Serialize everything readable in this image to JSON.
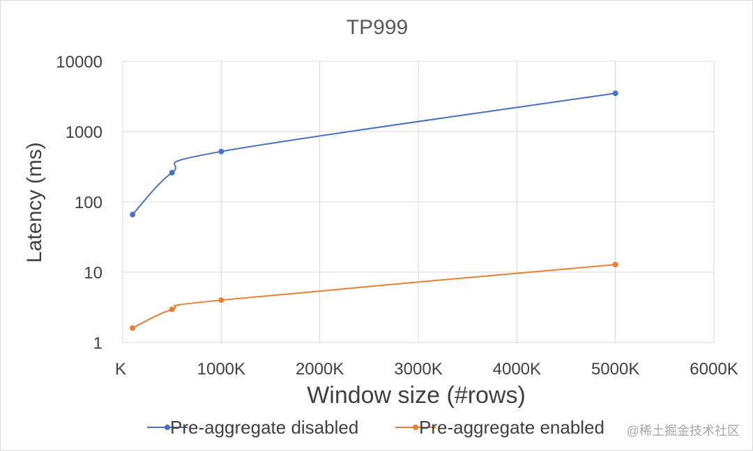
{
  "chart_data": {
    "type": "line",
    "title": "TP999",
    "xlabel": "Window size (#rows)",
    "ylabel": "Latency (ms)",
    "y_scale": "log",
    "xlim": [
      0,
      6000
    ],
    "ylim": [
      1,
      10000
    ],
    "x_tick_values": [
      0,
      1000,
      2000,
      3000,
      4000,
      5000,
      6000
    ],
    "x_tick_labels": [
      "K",
      "1000K",
      "2000K",
      "3000K",
      "4000K",
      "5000K",
      "6000K"
    ],
    "y_tick_values": [
      1,
      10,
      100,
      1000,
      10000
    ],
    "y_tick_labels": [
      "1",
      "10",
      "100",
      "1000",
      "10000"
    ],
    "grid": true,
    "legend_position": "bottom",
    "x": [
      100,
      500,
      1000,
      5000
    ],
    "series": [
      {
        "name": "Pre-aggregate disabled",
        "color": "#4472c4",
        "values": [
          66,
          260,
          520,
          3500
        ]
      },
      {
        "name": "Pre-aggregate enabled",
        "color": "#ed7d31",
        "values": [
          1.6,
          2.95,
          4.0,
          12.8
        ]
      }
    ]
  },
  "watermark": "@稀土掘金技术社区"
}
